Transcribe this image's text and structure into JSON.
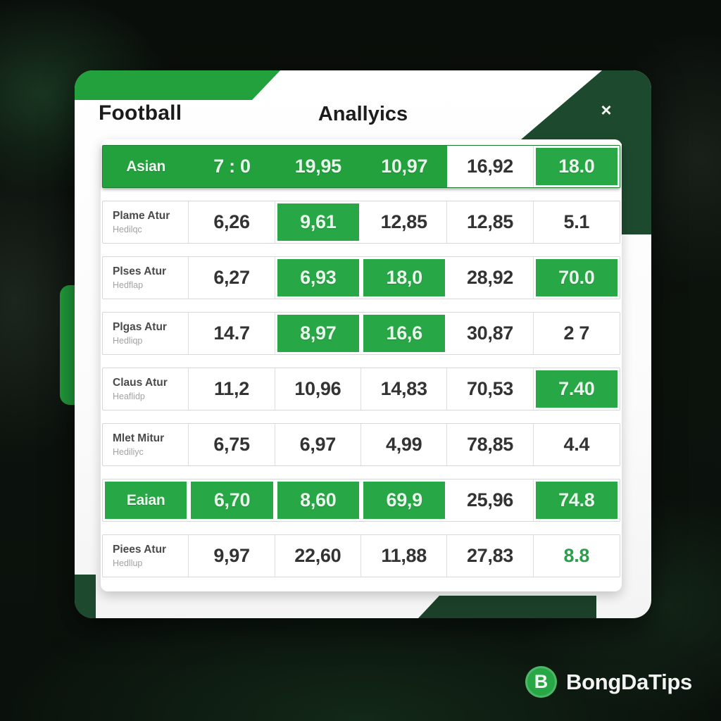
{
  "window": {
    "title_left": "Football",
    "title_center": "Anallyics",
    "close_label": "×"
  },
  "colors": {
    "accent": "#22a13d",
    "hl": "#28a746",
    "dark": "#1d4a2f",
    "dark2": "#1a4029",
    "gtext": "#2d9e4b"
  },
  "table": {
    "rows": [
      {
        "label": "Asian",
        "sub": "",
        "label_style": "green-flush",
        "cells": [
          {
            "t": "7 : 0",
            "s": "gf"
          },
          {
            "t": "19,95",
            "s": "gf"
          },
          {
            "t": "10,97",
            "s": "gf"
          },
          {
            "t": "16,92",
            "s": "w"
          },
          {
            "t": "18.0",
            "s": "g"
          }
        ]
      },
      {
        "label": "Plame Atur",
        "sub": "Hedilqc",
        "label_style": "normal",
        "cells": [
          {
            "t": "6,26",
            "s": "w"
          },
          {
            "t": "9,61",
            "s": "g"
          },
          {
            "t": "12,85",
            "s": "w"
          },
          {
            "t": "12,85",
            "s": "w"
          },
          {
            "t": "5.1",
            "s": "w"
          }
        ]
      },
      {
        "label": "Plses Atur",
        "sub": "Hedflap",
        "label_style": "normal",
        "cells": [
          {
            "t": "6,27",
            "s": "w"
          },
          {
            "t": "6,93",
            "s": "g"
          },
          {
            "t": "18,0",
            "s": "g"
          },
          {
            "t": "28,92",
            "s": "w"
          },
          {
            "t": "70.0",
            "s": "g"
          }
        ]
      },
      {
        "label": "Plgas Atur",
        "sub": "Hedliqp",
        "label_style": "normal",
        "cells": [
          {
            "t": "14.7",
            "s": "w"
          },
          {
            "t": "8,97",
            "s": "g"
          },
          {
            "t": "16,6",
            "s": "g"
          },
          {
            "t": "30,87",
            "s": "w"
          },
          {
            "t": "2 7",
            "s": "w"
          }
        ]
      },
      {
        "label": "Claus Atur",
        "sub": "Heaflidp",
        "label_style": "normal",
        "cells": [
          {
            "t": "11,2",
            "s": "w"
          },
          {
            "t": "10,96",
            "s": "w"
          },
          {
            "t": "14,83",
            "s": "w"
          },
          {
            "t": "70,53",
            "s": "w"
          },
          {
            "t": "7.40",
            "s": "g"
          }
        ]
      },
      {
        "label": "Mlet Mitur",
        "sub": "Hediliyc",
        "label_style": "normal",
        "cells": [
          {
            "t": "6,75",
            "s": "w"
          },
          {
            "t": "6,97",
            "s": "w"
          },
          {
            "t": "4,99",
            "s": "w"
          },
          {
            "t": "78,85",
            "s": "w"
          },
          {
            "t": "4.4",
            "s": "w"
          }
        ]
      },
      {
        "label": "Eaian",
        "sub": "",
        "label_style": "green-framed",
        "cells": [
          {
            "t": "6,70",
            "s": "g"
          },
          {
            "t": "8,60",
            "s": "g"
          },
          {
            "t": "69,9",
            "s": "g"
          },
          {
            "t": "25,96",
            "s": "w"
          },
          {
            "t": "74.8",
            "s": "g"
          }
        ]
      },
      {
        "label": "Piees Atur",
        "sub": "Hedllup",
        "label_style": "normal",
        "cells": [
          {
            "t": "9,97",
            "s": "w"
          },
          {
            "t": "22,60",
            "s": "w"
          },
          {
            "t": "11,88",
            "s": "w"
          },
          {
            "t": "27,83",
            "s": "w"
          },
          {
            "t": "8.8",
            "s": "wg"
          }
        ]
      }
    ]
  },
  "branding": {
    "logo_letter": "B",
    "name": "BongDaTips"
  }
}
